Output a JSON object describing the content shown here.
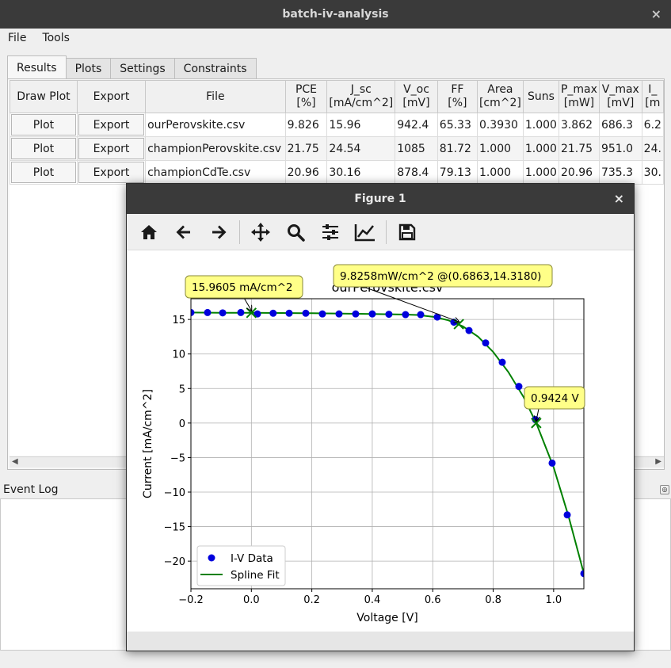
{
  "window": {
    "title": "batch-iv-analysis",
    "close": "×"
  },
  "menu": [
    "File",
    "Tools"
  ],
  "tabs": [
    "Results",
    "Plots",
    "Settings",
    "Constraints"
  ],
  "table": {
    "headers": [
      [
        "Draw Plot",
        ""
      ],
      [
        "Export",
        ""
      ],
      [
        "File",
        ""
      ],
      [
        "PCE",
        "[%]"
      ],
      [
        "J_sc",
        "[mA/cm^2]"
      ],
      [
        "V_oc",
        "[mV]"
      ],
      [
        "FF",
        "[%]"
      ],
      [
        "Area",
        "[cm^2]"
      ],
      [
        "Suns",
        ""
      ],
      [
        "P_max",
        "[mW]"
      ],
      [
        "V_max",
        "[mV]"
      ],
      [
        "I_",
        "[m"
      ]
    ],
    "button_labels": {
      "plot": "Plot",
      "export": "Export"
    },
    "rows": [
      [
        "ourPerovskite.csv",
        "9.826",
        "15.96",
        "942.4",
        "65.33",
        "0.3930",
        "1.000",
        "3.862",
        "686.3",
        "6.2"
      ],
      [
        "championPerovskite.csv",
        "21.75",
        "24.54",
        "1085",
        "81.72",
        "1.000",
        "1.000",
        "21.75",
        "951.0",
        "24."
      ],
      [
        "championCdTe.csv",
        "20.96",
        "30.16",
        "878.4",
        "79.13",
        "1.000",
        "1.000",
        "20.96",
        "735.3",
        "30."
      ]
    ]
  },
  "event_log": {
    "label": "Event Log"
  },
  "figure": {
    "title": "Figure 1",
    "close": "×",
    "toolbar": [
      "home-icon",
      "back-icon",
      "forward-icon",
      "pan-icon",
      "zoom-icon",
      "configure-subplots-icon",
      "edit-axis-icon",
      "save-icon"
    ]
  },
  "chart_data": {
    "type": "line",
    "title": "ourPerovskite.csv",
    "xlabel": "Voltage [V]",
    "ylabel": "Current [mA/cm^2]",
    "xlim": [
      -0.2,
      1.1
    ],
    "ylim": [
      -24,
      18
    ],
    "xticks": [
      -0.2,
      0.0,
      0.2,
      0.4,
      0.6,
      0.8,
      1.0
    ],
    "xtick_labels": [
      "−0.2",
      "0.0",
      "0.2",
      "0.4",
      "0.6",
      "0.8",
      "1.0"
    ],
    "yticks": [
      -20,
      -15,
      -10,
      -5,
      0,
      5,
      10,
      15
    ],
    "ytick_labels": [
      "−20",
      "−15",
      "−10",
      "−5",
      "0",
      "5",
      "10",
      "15"
    ],
    "grid": true,
    "legend": "lower-left",
    "series": [
      {
        "name": "I-V Data",
        "kind": "points",
        "color": "#0000dd",
        "x": [
          -0.2,
          -0.145,
          -0.095,
          -0.035,
          0.02,
          0.072,
          0.125,
          0.18,
          0.235,
          0.29,
          0.345,
          0.4,
          0.455,
          0.51,
          0.56,
          0.615,
          0.67,
          0.72,
          0.775,
          0.83,
          0.885,
          0.94,
          0.995,
          1.045,
          1.1
        ],
        "y": [
          16.0,
          16.0,
          15.95,
          16.0,
          15.8,
          15.9,
          15.9,
          15.9,
          15.8,
          15.8,
          15.8,
          15.8,
          15.75,
          15.7,
          15.7,
          15.35,
          14.6,
          13.4,
          11.6,
          8.8,
          5.3,
          0.5,
          -5.8,
          -13.3,
          -21.8
        ]
      },
      {
        "name": "Spline Fit",
        "kind": "line",
        "color": "#008000",
        "x": [
          -0.2,
          -0.1,
          0.0,
          0.1,
          0.2,
          0.3,
          0.4,
          0.5,
          0.55,
          0.6,
          0.65,
          0.7,
          0.75,
          0.8,
          0.85,
          0.9,
          0.9424,
          1.0,
          1.05,
          1.1
        ],
        "y": [
          16.0,
          15.97,
          15.96,
          15.93,
          15.9,
          15.85,
          15.8,
          15.72,
          15.65,
          15.4,
          14.9,
          14.0,
          12.5,
          10.3,
          7.4,
          3.8,
          0.0,
          -6.4,
          -13.6,
          -21.8
        ]
      }
    ],
    "markers": [
      {
        "x": 0.0,
        "y": 15.9605
      },
      {
        "x": 0.6863,
        "y": 14.318
      },
      {
        "x": 0.9424,
        "y": 0.0
      }
    ],
    "annotations": [
      {
        "text": "15.9605 mA/cm^2",
        "x": 0.0,
        "y": 15.9605
      },
      {
        "text": "9.8258mW/cm^2 @(0.6863,14.3180)",
        "x": 0.6863,
        "y": 14.318
      },
      {
        "text": "0.9424 V",
        "x": 0.9424,
        "y": 0.0
      }
    ]
  }
}
